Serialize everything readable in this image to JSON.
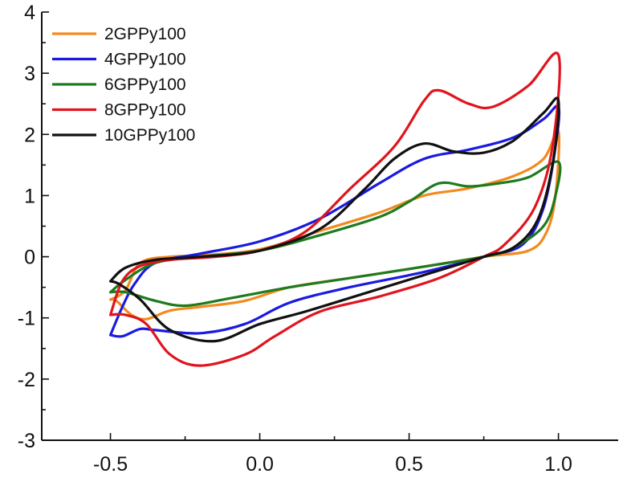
{
  "chart_data": {
    "type": "line",
    "title": "",
    "xlabel": "",
    "ylabel": "",
    "xlim": [
      -0.73,
      1.2
    ],
    "ylim": [
      -3,
      4
    ],
    "xticks": [
      -0.5,
      0.0,
      0.5,
      1.0
    ],
    "xtick_labels": [
      "-0.5",
      "0.0",
      "0.5",
      "1.0"
    ],
    "yticks": [
      -3,
      -2,
      -1,
      0,
      1,
      2,
      3,
      4
    ],
    "ytick_labels": [
      "-3",
      "-2",
      "-1",
      "0",
      "1",
      "2",
      "3",
      "4"
    ],
    "grid": false,
    "legend_position": "top-left",
    "series": [
      {
        "name": "2GPPy100",
        "color": "#f28a1e",
        "points": [
          [
            -0.5,
            -0.7
          ],
          [
            -0.45,
            -0.55
          ],
          [
            -0.4,
            -0.1
          ],
          [
            -0.3,
            0.0
          ],
          [
            -0.2,
            0.02
          ],
          [
            0.0,
            0.12
          ],
          [
            0.2,
            0.42
          ],
          [
            0.4,
            0.72
          ],
          [
            0.55,
            1.0
          ],
          [
            0.7,
            1.12
          ],
          [
            0.85,
            1.32
          ],
          [
            0.95,
            1.6
          ],
          [
            1.0,
            2.05
          ],
          [
            0.99,
            1.0
          ],
          [
            0.96,
            0.4
          ],
          [
            0.9,
            0.1
          ],
          [
            0.75,
            0.0
          ],
          [
            0.5,
            -0.2
          ],
          [
            0.3,
            -0.35
          ],
          [
            0.1,
            -0.5
          ],
          [
            -0.05,
            -0.72
          ],
          [
            -0.2,
            -0.82
          ],
          [
            -0.3,
            -0.88
          ],
          [
            -0.38,
            -1.02
          ],
          [
            -0.43,
            -0.95
          ],
          [
            -0.48,
            -0.72
          ],
          [
            -0.5,
            -0.7
          ]
        ]
      },
      {
        "name": "4GPPy100",
        "color": "#1a1ae0",
        "points": [
          [
            -0.5,
            -1.28
          ],
          [
            -0.46,
            -0.82
          ],
          [
            -0.42,
            -0.45
          ],
          [
            -0.35,
            -0.1
          ],
          [
            -0.2,
            0.05
          ],
          [
            0.0,
            0.25
          ],
          [
            0.2,
            0.62
          ],
          [
            0.4,
            1.2
          ],
          [
            0.55,
            1.6
          ],
          [
            0.7,
            1.75
          ],
          [
            0.85,
            1.95
          ],
          [
            0.95,
            2.25
          ],
          [
            1.0,
            2.45
          ],
          [
            0.99,
            1.8
          ],
          [
            0.95,
            0.8
          ],
          [
            0.88,
            0.2
          ],
          [
            0.75,
            0.0
          ],
          [
            0.55,
            -0.25
          ],
          [
            0.3,
            -0.5
          ],
          [
            0.1,
            -0.75
          ],
          [
            -0.05,
            -1.1
          ],
          [
            -0.2,
            -1.25
          ],
          [
            -0.35,
            -1.2
          ],
          [
            -0.4,
            -1.18
          ],
          [
            -0.46,
            -1.3
          ],
          [
            -0.5,
            -1.28
          ]
        ]
      },
      {
        "name": "6GPPy100",
        "color": "#1e7a1e",
        "points": [
          [
            -0.5,
            -0.58
          ],
          [
            -0.45,
            -0.38
          ],
          [
            -0.35,
            -0.1
          ],
          [
            -0.2,
            0.0
          ],
          [
            0.0,
            0.1
          ],
          [
            0.2,
            0.35
          ],
          [
            0.4,
            0.65
          ],
          [
            0.5,
            0.9
          ],
          [
            0.6,
            1.2
          ],
          [
            0.7,
            1.15
          ],
          [
            0.8,
            1.2
          ],
          [
            0.9,
            1.3
          ],
          [
            1.0,
            1.55
          ],
          [
            0.99,
            1.0
          ],
          [
            0.95,
            0.5
          ],
          [
            0.85,
            0.15
          ],
          [
            0.75,
            0.0
          ],
          [
            0.5,
            -0.2
          ],
          [
            0.3,
            -0.35
          ],
          [
            0.1,
            -0.5
          ],
          [
            -0.1,
            -0.68
          ],
          [
            -0.25,
            -0.8
          ],
          [
            -0.35,
            -0.72
          ],
          [
            -0.45,
            -0.58
          ],
          [
            -0.5,
            -0.58
          ]
        ]
      },
      {
        "name": "8GPPy100",
        "color": "#e0141e",
        "points": [
          [
            -0.5,
            -0.95
          ],
          [
            -0.46,
            -0.4
          ],
          [
            -0.4,
            -0.15
          ],
          [
            -0.3,
            -0.05
          ],
          [
            -0.15,
            0.0
          ],
          [
            0.0,
            0.1
          ],
          [
            0.15,
            0.4
          ],
          [
            0.3,
            1.1
          ],
          [
            0.45,
            1.8
          ],
          [
            0.55,
            2.55
          ],
          [
            0.6,
            2.72
          ],
          [
            0.7,
            2.5
          ],
          [
            0.78,
            2.45
          ],
          [
            0.9,
            2.8
          ],
          [
            1.0,
            3.3
          ],
          [
            0.98,
            1.8
          ],
          [
            0.92,
            0.8
          ],
          [
            0.82,
            0.2
          ],
          [
            0.75,
            0.0
          ],
          [
            0.6,
            -0.35
          ],
          [
            0.4,
            -0.65
          ],
          [
            0.2,
            -0.9
          ],
          [
            0.05,
            -1.3
          ],
          [
            -0.05,
            -1.6
          ],
          [
            -0.2,
            -1.78
          ],
          [
            -0.3,
            -1.6
          ],
          [
            -0.38,
            -1.1
          ],
          [
            -0.45,
            -0.95
          ],
          [
            -0.5,
            -0.95
          ]
        ]
      },
      {
        "name": "10GPPy100",
        "color": "#111111",
        "points": [
          [
            -0.5,
            -0.4
          ],
          [
            -0.45,
            -0.18
          ],
          [
            -0.35,
            -0.05
          ],
          [
            -0.2,
            0.0
          ],
          [
            0.0,
            0.1
          ],
          [
            0.2,
            0.45
          ],
          [
            0.35,
            1.1
          ],
          [
            0.45,
            1.6
          ],
          [
            0.55,
            1.85
          ],
          [
            0.65,
            1.72
          ],
          [
            0.75,
            1.7
          ],
          [
            0.85,
            1.9
          ],
          [
            0.95,
            2.35
          ],
          [
            1.0,
            2.55
          ],
          [
            0.98,
            1.5
          ],
          [
            0.93,
            0.6
          ],
          [
            0.85,
            0.15
          ],
          [
            0.75,
            0.0
          ],
          [
            0.55,
            -0.3
          ],
          [
            0.35,
            -0.6
          ],
          [
            0.15,
            -0.9
          ],
          [
            0.0,
            -1.1
          ],
          [
            -0.15,
            -1.38
          ],
          [
            -0.3,
            -1.2
          ],
          [
            -0.4,
            -0.7
          ],
          [
            -0.47,
            -0.45
          ],
          [
            -0.5,
            -0.4
          ]
        ]
      }
    ]
  }
}
